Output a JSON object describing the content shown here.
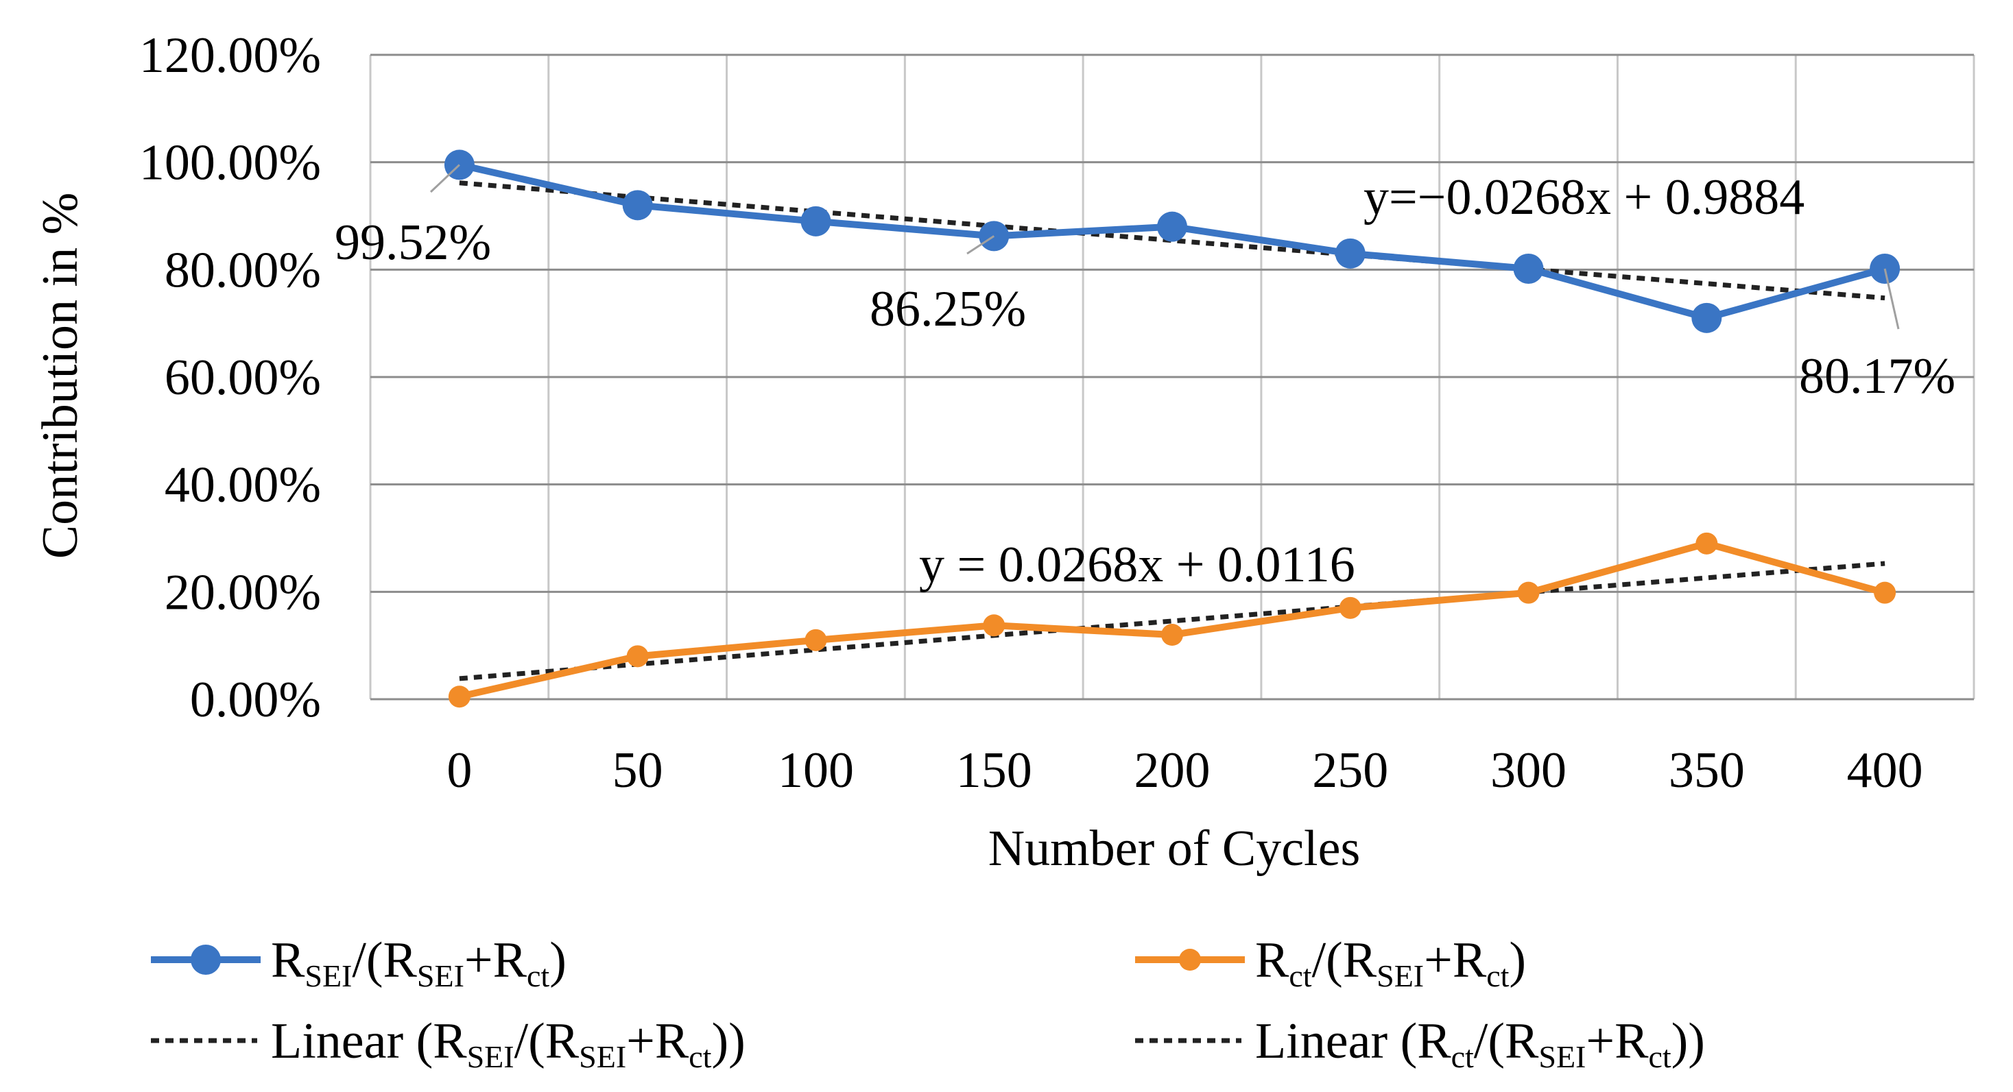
{
  "chart_data": {
    "type": "line",
    "x": [
      0,
      50,
      100,
      150,
      200,
      250,
      300,
      350,
      400
    ],
    "xlabel": "Number of Cycles",
    "ylabel": "Contribution in %",
    "ylim": [
      0,
      1.2
    ],
    "y_tick_values": [
      0,
      0.2,
      0.4,
      0.6,
      0.8,
      1.0,
      1.2
    ],
    "y_tick_labels": [
      "0.00%",
      "20.00%",
      "40.00%",
      "60.00%",
      "80.00%",
      "100.00%",
      "120.00%"
    ],
    "x_tick_labels": [
      "0",
      "50",
      "100",
      "150",
      "200",
      "250",
      "300",
      "350",
      "400"
    ],
    "grid": true,
    "legend_position": "bottom",
    "series": [
      {
        "key": "sei",
        "values": [
          0.9952,
          0.92,
          0.89,
          0.8625,
          0.88,
          0.83,
          0.8017,
          0.71,
          0.8017
        ],
        "color": "#3A75C4",
        "marker": "circle-large"
      },
      {
        "key": "ct",
        "values": [
          0.0048,
          0.08,
          0.11,
          0.1375,
          0.12,
          0.17,
          0.1983,
          0.29,
          0.1983
        ],
        "color": "#F28C28",
        "marker": "circle-small"
      }
    ],
    "trendlines": [
      {
        "key": "sei",
        "slope": -0.0268,
        "intercept": 0.9884,
        "color": "#222222",
        "style": "dotted"
      },
      {
        "key": "ct",
        "slope": 0.0268,
        "intercept": 0.0116,
        "color": "#222222",
        "style": "dotted"
      }
    ],
    "annotations": {
      "sei_label_0": "99.52%",
      "sei_label_150": "86.25%",
      "sei_label_400": "80.17%",
      "sei_equation": "y=−0.0268x + 0.9884",
      "ct_equation": "y = 0.0268x + 0.0116"
    },
    "legend": {
      "sei": {
        "main1": "R",
        "sub1": "SEI",
        "main2": "/(R",
        "sub2": "SEI",
        "main3": "+R",
        "sub3": "ct",
        "main4": ")"
      },
      "ct": {
        "main1": "R",
        "sub1": "ct",
        "main2": "/(R",
        "sub2": "SEI",
        "main3": "+R",
        "sub3": "ct",
        "main4": ")"
      },
      "sei_linear": {
        "main1": "Linear (R",
        "sub1": "SEI",
        "main2": "/(R",
        "sub2": "SEI",
        "main3": "+R",
        "sub3": "ct",
        "main4": "))"
      },
      "ct_linear": {
        "main1": "Linear (R",
        "sub1": "ct",
        "main2": "/(R",
        "sub2": "SEI",
        "main3": "+R",
        "sub3": "ct",
        "main4": "))"
      }
    }
  }
}
